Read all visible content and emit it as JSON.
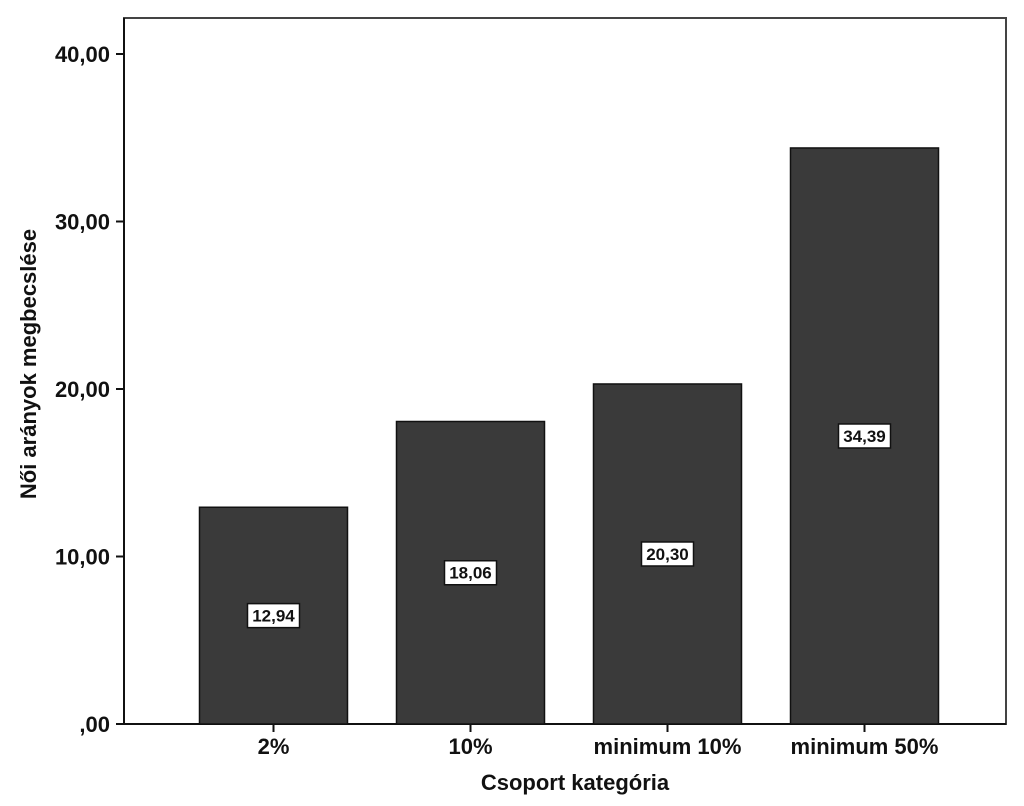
{
  "chart_data": {
    "type": "bar",
    "categories": [
      "2%",
      "10%",
      "minimum 10%",
      "minimum 50%"
    ],
    "values": [
      12.94,
      18.06,
      20.3,
      34.39
    ],
    "data_labels": [
      "12,94",
      "18,06",
      "20,30",
      "34,39"
    ],
    "xlabel": "Csoport kategória",
    "ylabel": "Női arányok megbecslése",
    "ylim": [
      0,
      40
    ],
    "yticks": [
      0,
      10,
      20,
      30,
      40
    ],
    "ytick_labels": [
      ",00",
      "10,00",
      "20,00",
      "30,00",
      "40,00"
    ],
    "grid": false,
    "legend": "none",
    "bar_color": "#3a3a3a"
  }
}
